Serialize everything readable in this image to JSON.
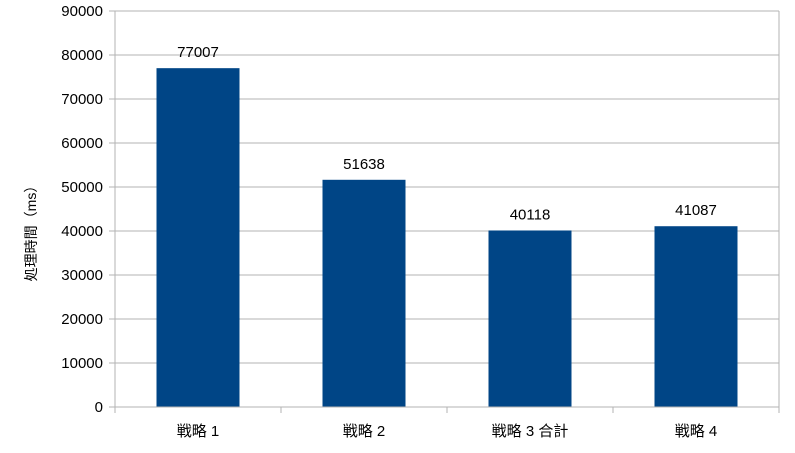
{
  "chart_data": {
    "type": "bar",
    "title": "",
    "xlabel": "",
    "ylabel": "処理時間（ms）",
    "categories": [
      "戦略 1",
      "戦略 2",
      "戦略 3 合計",
      "戦略 4"
    ],
    "values": [
      77007,
      51638,
      40118,
      41087
    ],
    "data_labels": [
      "77007",
      "51638",
      "40118",
      "41087"
    ],
    "ylim": [
      0,
      90000
    ],
    "yticks": [
      "0",
      "10000",
      "20000",
      "30000",
      "40000",
      "50000",
      "60000",
      "70000",
      "80000",
      "90000"
    ],
    "grid": true,
    "legend": "none",
    "bar_color": "#004586",
    "grid_color": "#b3b3b3"
  }
}
